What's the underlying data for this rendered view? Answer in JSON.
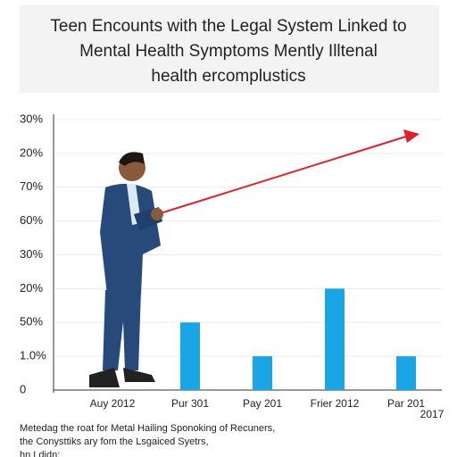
{
  "chart_data": {
    "type": "bar",
    "title": [
      "Teen Encounts with the Legal System Linked to",
      "Mental Health Symptoms Mently Illtenal",
      "health ercomplustics"
    ],
    "categories": [
      "Auy 2012",
      "Pur 301",
      "Pay 201",
      "Frier 2012",
      "Par 201"
    ],
    "category_note": "2017",
    "values": [
      null,
      2,
      1,
      3,
      1
    ],
    "color": "#1aa6e6",
    "ylim": [
      0,
      8
    ],
    "yticks": [
      {
        "value": 0,
        "label": "0"
      },
      {
        "value": 1,
        "label": "1.0%"
      },
      {
        "value": 2,
        "label": "50%"
      },
      {
        "value": 3,
        "label": "20%"
      },
      {
        "value": 4,
        "label": "30%"
      },
      {
        "value": 5,
        "label": "60%"
      },
      {
        "value": 6,
        "label": "70%"
      },
      {
        "value": 7,
        "label": "20%"
      },
      {
        "value": 8,
        "label": "30%"
      }
    ],
    "grid": true,
    "footnote": [
      "Metedag the roat for Metal Hailing Sponoking of Recuners,",
      "the Conysttiks ary fom the Lsgaiced Syetrs,",
      "hn Ldidn:"
    ]
  }
}
